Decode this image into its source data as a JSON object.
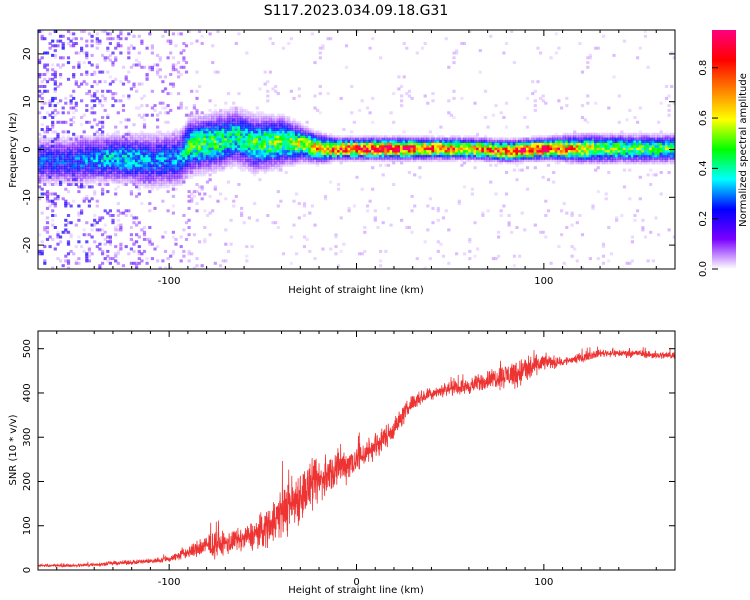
{
  "title": "S117.2023.034.09.18.G31",
  "chart_data": [
    {
      "type": "heatmap",
      "xlabel": "Height of straight line (km)",
      "ylabel": "Frequency (Hz)",
      "xlim": [
        -170,
        170
      ],
      "ylim": [
        -25,
        25
      ],
      "xticks": [
        -100,
        0,
        100
      ],
      "xtick_labels": [
        "-100",
        "",
        "100"
      ],
      "yticks": [
        -20,
        -10,
        0,
        10,
        20
      ],
      "ytick_labels": [
        "-20",
        "-10",
        "0",
        "10",
        "20"
      ],
      "colorbar": {
        "label": "Normalized spectral amplitude",
        "range": [
          0,
          0.95
        ],
        "ticks": [
          0.0,
          0.2,
          0.4,
          0.6,
          0.8
        ],
        "tick_labels": [
          "0.0",
          "0.2",
          "0.4",
          "0.6",
          "0.8"
        ],
        "colormap": [
          "#ffffff",
          "#7a00ff",
          "#0000ff",
          "#00ffff",
          "#00ff00",
          "#ffff00",
          "#ff8000",
          "#ff0000",
          "#ff0080"
        ]
      },
      "ridge": [
        {
          "x": -155,
          "y": -2.5,
          "amp": 0.25,
          "width": 3.5
        },
        {
          "x": -130,
          "y": -2.0,
          "amp": 0.35,
          "width": 3.5
        },
        {
          "x": -110,
          "y": -2.5,
          "amp": 0.3,
          "width": 4.0
        },
        {
          "x": -95,
          "y": -2.0,
          "amp": 0.3,
          "width": 4.0
        },
        {
          "x": -90,
          "y": 0.5,
          "amp": 0.45,
          "width": 4.0
        },
        {
          "x": -75,
          "y": 1.5,
          "amp": 0.45,
          "width": 4.0
        },
        {
          "x": -65,
          "y": 2.5,
          "amp": 0.4,
          "width": 4.0
        },
        {
          "x": -55,
          "y": 1.0,
          "amp": 0.45,
          "width": 4.0
        },
        {
          "x": -40,
          "y": 1.5,
          "amp": 0.5,
          "width": 3.5
        },
        {
          "x": -30,
          "y": 1.0,
          "amp": 0.55,
          "width": 2.5
        },
        {
          "x": -20,
          "y": 0.0,
          "amp": 0.65,
          "width": 2.0
        },
        {
          "x": -10,
          "y": 0.0,
          "amp": 0.8,
          "width": 1.5
        },
        {
          "x": 0,
          "y": 0.0,
          "amp": 0.85,
          "width": 1.5
        },
        {
          "x": 20,
          "y": 0.0,
          "amp": 0.9,
          "width": 1.5
        },
        {
          "x": 40,
          "y": 0.0,
          "amp": 0.75,
          "width": 1.5
        },
        {
          "x": 60,
          "y": 0.0,
          "amp": 0.7,
          "width": 1.5
        },
        {
          "x": 80,
          "y": -0.5,
          "amp": 0.8,
          "width": 1.5
        },
        {
          "x": 100,
          "y": 0.0,
          "amp": 0.9,
          "width": 1.5
        },
        {
          "x": 120,
          "y": 0.0,
          "amp": 0.6,
          "width": 2.0
        },
        {
          "x": 140,
          "y": 0.0,
          "amp": 0.5,
          "width": 2.0
        },
        {
          "x": 170,
          "y": 0.0,
          "amp": 0.45,
          "width": 2.0
        }
      ]
    },
    {
      "type": "line",
      "xlabel": "Height of straight line (km)",
      "ylabel": "SNR (10 * v/v)",
      "xlim": [
        -170,
        170
      ],
      "ylim": [
        0,
        540
      ],
      "xticks": [
        -100,
        0,
        100
      ],
      "xtick_labels": [
        "-100",
        "0",
        "100"
      ],
      "yticks": [
        0,
        100,
        200,
        300,
        400,
        500
      ],
      "ytick_labels": [
        "0",
        "100",
        "200",
        "300",
        "400",
        "500"
      ],
      "color": "#ee3333",
      "series": [
        {
          "x": [
            -170,
            -150,
            -130,
            -110,
            -100,
            -90,
            -80,
            -70,
            -60,
            -50,
            -40,
            -30,
            -20,
            -10,
            0,
            10,
            20,
            30,
            40,
            50,
            60,
            70,
            80,
            90,
            100,
            110,
            120,
            130,
            140,
            150,
            160,
            170
          ],
          "values": [
            10,
            10,
            15,
            20,
            25,
            40,
            55,
            60,
            70,
            90,
            130,
            170,
            200,
            230,
            250,
            280,
            320,
            380,
            400,
            410,
            415,
            430,
            440,
            450,
            470,
            470,
            480,
            490,
            490,
            490,
            485,
            485
          ],
          "noise": [
            3,
            5,
            6,
            8,
            10,
            20,
            35,
            40,
            35,
            60,
            80,
            90,
            70,
            60,
            50,
            40,
            35,
            25,
            20,
            20,
            25,
            30,
            40,
            50,
            25,
            15,
            15,
            12,
            12,
            12,
            12,
            12
          ]
        }
      ]
    }
  ]
}
